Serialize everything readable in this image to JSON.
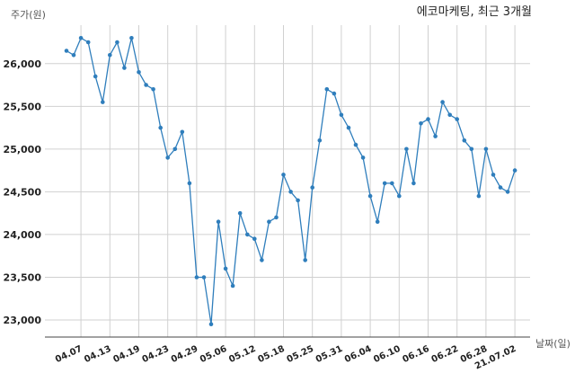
{
  "chart_data": {
    "type": "line",
    "title": "에코마케팅, 최근 3개월",
    "ylabel": "주가(원)",
    "xlabel": "날짜(일)",
    "ylim": [
      22800,
      26450
    ],
    "yticks": [
      "23,000",
      "23,500",
      "24,000",
      "24,500",
      "25,000",
      "25,500",
      "26,000"
    ],
    "ytick_values": [
      23000,
      23500,
      24000,
      24500,
      25000,
      25500,
      26000
    ],
    "xtick_labels": [
      "04.07",
      "04.13",
      "04.19",
      "04.23",
      "04.29",
      "05.06",
      "05.12",
      "05.18",
      "05.25",
      "05.31",
      "06.04",
      "06.10",
      "06.16",
      "06.22",
      "06.28",
      "21.07.02"
    ],
    "xtick_index": [
      2,
      6,
      10,
      14,
      18,
      22,
      26,
      30,
      34,
      38,
      42,
      46,
      50,
      54,
      58,
      62
    ],
    "grid": true,
    "series": [
      {
        "values": [
          26150,
          26100,
          26300,
          26250,
          25850,
          25550,
          26100,
          26250,
          25950,
          26300,
          25900,
          25750,
          25700,
          25250,
          24900,
          25000,
          25200,
          24600,
          23500,
          23500,
          22950,
          24150,
          23600,
          23400,
          24250,
          24000,
          23950,
          23700,
          24150,
          24200,
          24700,
          24500,
          24400,
          23700,
          24550,
          25100,
          25700,
          25650,
          25400,
          25250,
          25050,
          24900,
          24450,
          24150,
          24600,
          24600,
          24450,
          25000,
          24600,
          25300,
          25350,
          25150,
          25550,
          25400,
          25350,
          25100,
          25000,
          24450,
          25000,
          24700,
          24550,
          24500,
          24750
        ]
      }
    ],
    "colors": {
      "line": "#2f7ebc",
      "grid": "#d0d0d0"
    }
  }
}
